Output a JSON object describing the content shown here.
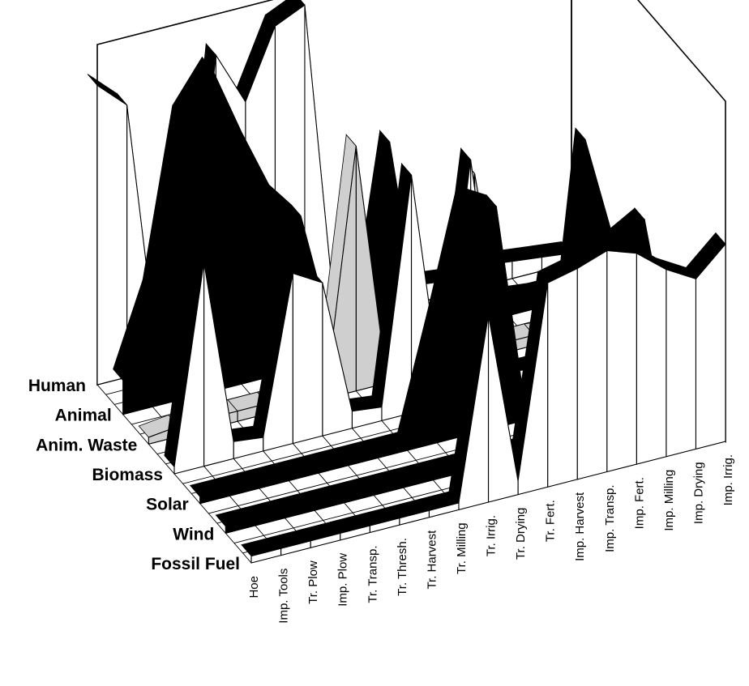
{
  "chart_data": {
    "type": "3d-ribbon",
    "title": "",
    "xlabel": "",
    "ylabel": "",
    "zlabel": "",
    "categories": [
      "Hoe",
      "Imp. Tools",
      "Tr. Plow",
      "Imp. Plow",
      "Tr. Transp.",
      "Tr. Thresh.",
      "Tr. Harvest",
      "Tr. Milling",
      "Tr. Irrig.",
      "Tr. Drying",
      "Tr. Fert.",
      "Imp. Harvest",
      "Imp. Transp.",
      "Imp. Fert.",
      "Imp. Milling",
      "Imp. Drying",
      "Imp. Irrig."
    ],
    "sources": [
      "Human",
      "Animal",
      "Anim. Waste",
      "Biomass",
      "Solar",
      "Wind",
      "Fossil Fuel"
    ],
    "zlim": [
      0,
      1
    ],
    "grid": true,
    "series": [
      {
        "name": "Human",
        "fill": "#ffffff",
        "values": [
          0.88,
          0.8,
          0.06,
          0.05,
          0.88,
          0.72,
          0.92,
          0.96,
          0.04,
          0.05,
          0.04,
          0.05,
          0.04,
          0.06,
          0.05,
          0.04,
          0.03
        ]
      },
      {
        "name": "Animal",
        "fill": "#000000",
        "values": [
          0.1,
          0.34,
          0.83,
          0.95,
          0.74,
          0.55,
          0.45,
          0.1,
          0.05,
          0.6,
          0.05,
          0.04,
          0.04,
          0.05,
          0.04,
          0.04,
          0.03
        ]
      },
      {
        "name": "Anim. Waste",
        "fill": "#cfcfcf",
        "values": [
          0.02,
          0.03,
          0.03,
          0.03,
          0.03,
          0.02,
          0.03,
          0.72,
          0.03,
          0.02,
          0.03,
          0.55,
          0.03,
          0.03,
          0.02,
          0.02,
          0.02
        ]
      },
      {
        "name": "Biomass",
        "fill": "#ffffff",
        "values": [
          0.02,
          0.6,
          0.05,
          0.04,
          0.5,
          0.45,
          0.05,
          0.04,
          0.7,
          0.04,
          0.7,
          0.05,
          0.04,
          0.04,
          0.04,
          0.05,
          0.04
        ]
      },
      {
        "name": "Solar",
        "fill": "#000000",
        "values": [
          0.02,
          0.02,
          0.02,
          0.02,
          0.02,
          0.02,
          0.02,
          0.02,
          0.35,
          0.7,
          0.65,
          0.02,
          0.02,
          0.78,
          0.45,
          0.5,
          0.02
        ]
      },
      {
        "name": "Wind",
        "fill": "#000000",
        "values": [
          0.02,
          0.02,
          0.02,
          0.02,
          0.02,
          0.02,
          0.02,
          0.02,
          0.02,
          0.02,
          0.02,
          0.02,
          0.02,
          0.02,
          0.02,
          0.02,
          0.02
        ]
      },
      {
        "name": "Fossil Fuel",
        "fill": "#ffffff",
        "values": [
          0.02,
          0.02,
          0.02,
          0.02,
          0.02,
          0.02,
          0.02,
          0.02,
          0.55,
          0.04,
          0.6,
          0.62,
          0.65,
          0.62,
          0.55,
          0.5,
          0.58
        ]
      }
    ]
  }
}
